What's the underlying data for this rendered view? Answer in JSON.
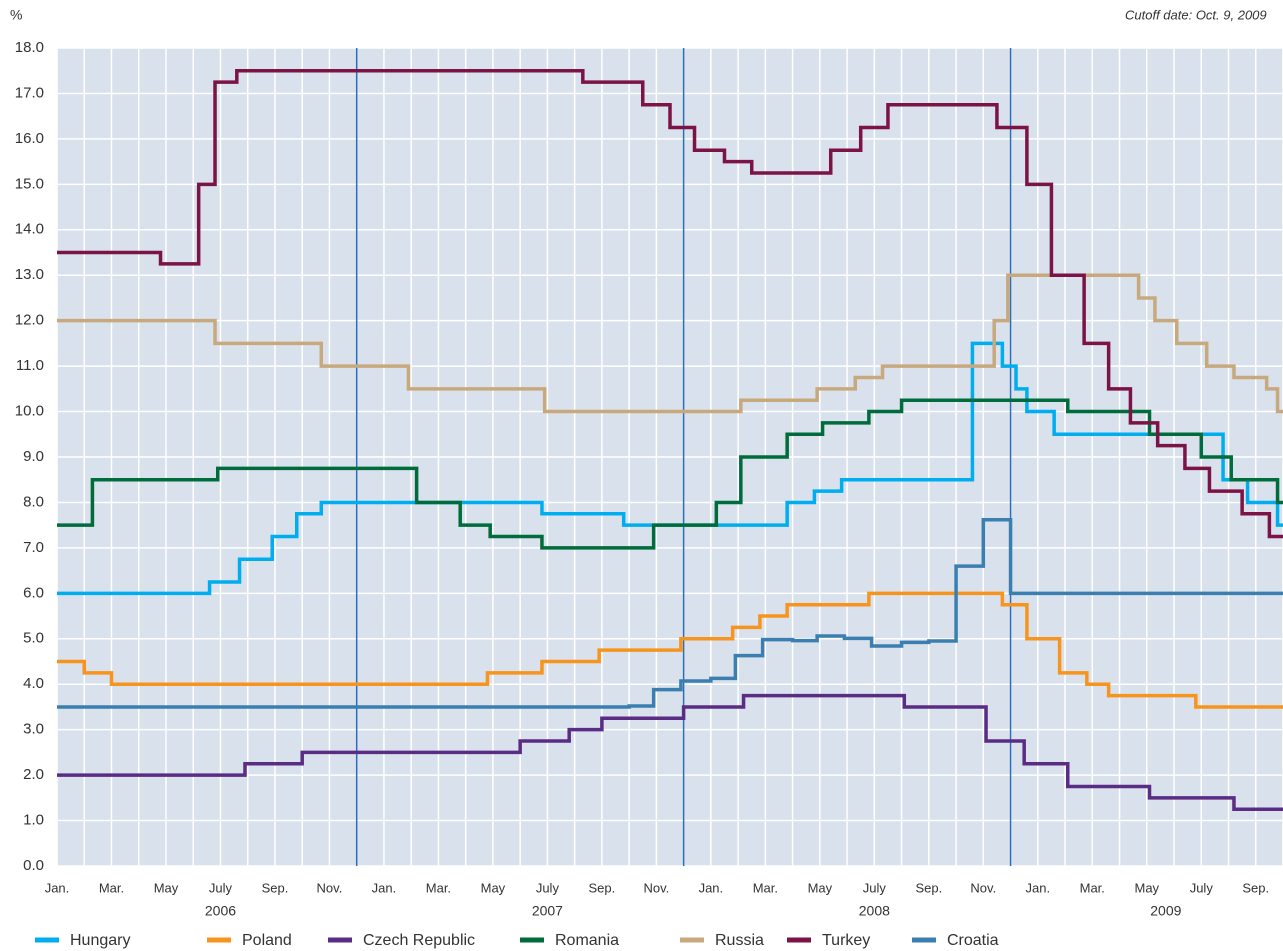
{
  "chart_data": {
    "type": "step",
    "unit_label": "%",
    "note": "Cutoff date: Oct. 9, 2009",
    "xlim": [
      0,
      45
    ],
    "xticks": [
      {
        "value": 0,
        "label": "Jan."
      },
      {
        "value": 2,
        "label": "Mar."
      },
      {
        "value": 4,
        "label": "May"
      },
      {
        "value": 6,
        "label": "July"
      },
      {
        "value": 8,
        "label": "Sep."
      },
      {
        "value": 10,
        "label": "Nov."
      },
      {
        "value": 12,
        "label": "Jan."
      },
      {
        "value": 14,
        "label": "Mar."
      },
      {
        "value": 16,
        "label": "May"
      },
      {
        "value": 18,
        "label": "July"
      },
      {
        "value": 20,
        "label": "Sep."
      },
      {
        "value": 22,
        "label": "Nov."
      },
      {
        "value": 24,
        "label": "Jan."
      },
      {
        "value": 26,
        "label": "Mar."
      },
      {
        "value": 28,
        "label": "May"
      },
      {
        "value": 30,
        "label": "July"
      },
      {
        "value": 32,
        "label": "Sep."
      },
      {
        "value": 34,
        "label": "Nov."
      },
      {
        "value": 36,
        "label": "Jan."
      },
      {
        "value": 38,
        "label": "Mar."
      },
      {
        "value": 40,
        "label": "May"
      },
      {
        "value": 42,
        "label": "July"
      },
      {
        "value": 44,
        "label": "Sep."
      }
    ],
    "year_labels": [
      {
        "value": 6,
        "label": "2006"
      },
      {
        "value": 18,
        "label": "2007"
      },
      {
        "value": 30,
        "label": "2008"
      },
      {
        "value": 40.7,
        "label": "2009"
      }
    ],
    "year_separators": [
      11,
      23,
      35
    ],
    "ylim": [
      0,
      18
    ],
    "yticks": [
      {
        "value": 0,
        "label": "0.0"
      },
      {
        "value": 1,
        "label": "1.0"
      },
      {
        "value": 2,
        "label": "2.0"
      },
      {
        "value": 3,
        "label": "3.0"
      },
      {
        "value": 4,
        "label": "4.0"
      },
      {
        "value": 5,
        "label": "5.0"
      },
      {
        "value": 6,
        "label": "6.0"
      },
      {
        "value": 7,
        "label": "7.0"
      },
      {
        "value": 8,
        "label": "8.0"
      },
      {
        "value": 9,
        "label": "9.0"
      },
      {
        "value": 10,
        "label": "10.0"
      },
      {
        "value": 11,
        "label": "11.0"
      },
      {
        "value": 12,
        "label": "12.0"
      },
      {
        "value": 13,
        "label": "13.0"
      },
      {
        "value": 14,
        "label": "14.0"
      },
      {
        "value": 15,
        "label": "15.0"
      },
      {
        "value": 16,
        "label": "16.0"
      },
      {
        "value": 17,
        "label": "17.0"
      },
      {
        "value": 18,
        "label": "18.0"
      }
    ],
    "grid": true,
    "series": [
      {
        "name": "Hungary",
        "color": "#00aeef",
        "x": [
          0,
          5.6,
          6.7,
          7.9,
          8.8,
          9.7,
          17.8,
          20.8,
          26.8,
          27.8,
          28.8,
          33.6,
          34.7,
          35.2,
          35.6,
          36.6,
          42.8,
          43.7,
          44.8
        ],
        "values": [
          6.0,
          6.25,
          6.75,
          7.25,
          7.75,
          8.0,
          7.75,
          7.5,
          8.0,
          8.25,
          8.5,
          11.5,
          11.0,
          10.5,
          10.0,
          9.5,
          8.5,
          8.0,
          7.5
        ]
      },
      {
        "name": "Poland",
        "color": "#f7941d",
        "x": [
          0,
          1.0,
          2.0,
          15.8,
          17.8,
          19.9,
          22.9,
          24.8,
          25.8,
          26.8,
          29.8,
          34.7,
          35.6,
          36.8,
          37.8,
          38.6,
          41.8
        ],
        "values": [
          4.5,
          4.25,
          4.0,
          4.25,
          4.5,
          4.75,
          5.0,
          5.25,
          5.5,
          5.75,
          6.0,
          5.75,
          5.0,
          4.25,
          4.0,
          3.75,
          3.5
        ]
      },
      {
        "name": "Czech Republic",
        "color": "#5b2c83",
        "x": [
          0,
          6.9,
          9.0,
          17.0,
          18.8,
          20.0,
          23.0,
          25.2,
          31.1,
          34.1,
          35.5,
          37.1,
          40.1,
          43.2
        ],
        "values": [
          2.0,
          2.25,
          2.5,
          2.75,
          3.0,
          3.25,
          3.5,
          3.75,
          3.5,
          2.75,
          2.25,
          1.75,
          1.5,
          1.25
        ]
      },
      {
        "name": "Romania",
        "color": "#006c3b",
        "x": [
          0,
          1.3,
          5.9,
          13.2,
          14.8,
          15.9,
          17.8,
          21.9,
          24.2,
          25.1,
          26.8,
          28.1,
          29.8,
          31.0,
          37.1,
          40.1,
          42.0,
          43.1,
          44.8
        ],
        "values": [
          7.5,
          8.5,
          8.75,
          8.0,
          7.5,
          7.25,
          7.0,
          7.5,
          8.0,
          9.0,
          9.5,
          9.75,
          10.0,
          10.25,
          10.0,
          9.5,
          9.0,
          8.5,
          8.0
        ]
      },
      {
        "name": "Russia",
        "color": "#c8a97e",
        "x": [
          0,
          5.8,
          9.7,
          12.9,
          17.9,
          25.1,
          27.9,
          29.3,
          30.3,
          34.4,
          34.9,
          39.7,
          40.3,
          41.1,
          42.2,
          43.2,
          44.4,
          44.8
        ],
        "values": [
          12.0,
          11.5,
          11.0,
          10.5,
          10.0,
          10.25,
          10.5,
          10.75,
          11.0,
          12.0,
          13.0,
          12.5,
          12.0,
          11.5,
          11.0,
          10.75,
          10.5,
          10.0
        ]
      },
      {
        "name": "Turkey",
        "color": "#7b1346",
        "x": [
          0,
          3.8,
          5.2,
          5.8,
          6.6,
          19.3,
          21.5,
          22.5,
          23.4,
          24.5,
          25.5,
          28.4,
          29.5,
          30.5,
          34.5,
          35.6,
          36.5,
          37.7,
          38.6,
          39.4,
          40.4,
          41.4,
          42.3,
          43.5,
          44.5
        ],
        "values": [
          13.5,
          13.25,
          15.0,
          17.25,
          17.5,
          17.25,
          16.75,
          16.25,
          15.75,
          15.5,
          15.25,
          15.75,
          16.25,
          16.75,
          16.25,
          15.0,
          13.0,
          11.5,
          10.5,
          9.75,
          9.25,
          8.75,
          8.25,
          7.75,
          7.25
        ]
      },
      {
        "name": "Croatia",
        "color": "#3a7fb0",
        "x": [
          0,
          21.0,
          21.9,
          22.9,
          24.0,
          24.9,
          25.9,
          27.0,
          27.9,
          28.9,
          29.9,
          31.0,
          32.0,
          33.0,
          34.0,
          35.0
        ],
        "values": [
          3.5,
          3.52,
          3.88,
          4.07,
          4.13,
          4.63,
          4.98,
          4.96,
          5.06,
          5.01,
          4.84,
          4.92,
          4.95,
          6.6,
          7.62,
          6.0
        ]
      }
    ]
  }
}
